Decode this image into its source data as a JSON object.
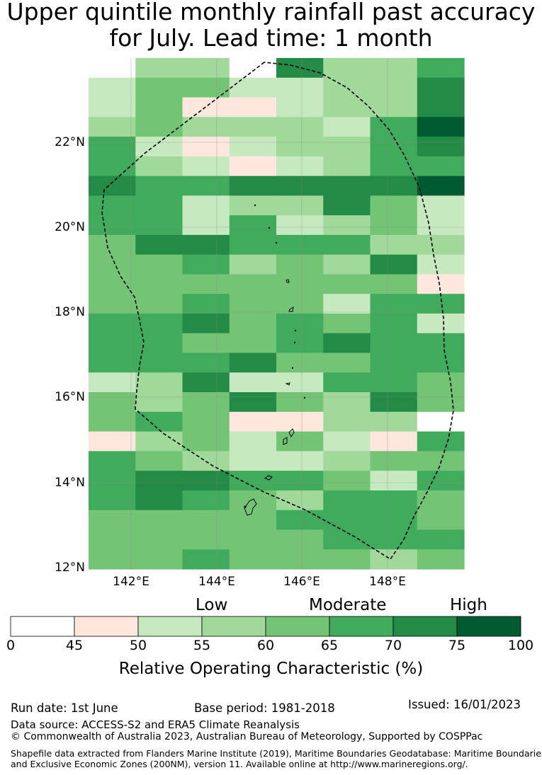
{
  "title": {
    "line1": "Upper quintile monthly rainfall past accuracy",
    "line2": "for July. Lead time: 1 month"
  },
  "map": {
    "lat_labels": [
      "22°N",
      "20°N",
      "18°N",
      "16°N",
      "14°N",
      "12°N"
    ],
    "lon_labels": [
      "142°E",
      "144°E",
      "146°E",
      "148°E"
    ],
    "colorbar": {
      "category_labels": [
        "Low",
        "Moderate",
        "High"
      ],
      "ticks": [
        "0",
        "45",
        "50",
        "55",
        "60",
        "65",
        "70",
        "75",
        "100"
      ],
      "colors": [
        "#ffffff",
        "#fee8de",
        "#c7e9c0",
        "#a1d99b",
        "#74c476",
        "#41ab5d",
        "#238b45",
        "#005a32"
      ],
      "title": "Relative Operating Characteristic (%)"
    },
    "grid_rows": [
      "03306335",
      "24422336",
      "24112336",
      "34333257",
      "52123356",
      "53212355",
      "65566667",
      "55233642",
      "55252342",
      "46655533",
      "44534362",
      "44444441",
      "44544255",
      "55645452",
      "55445655",
      "55564455",
      "23622554",
      "43464364",
      "45411330",
      "13424215",
      "54322344",
      "56655425",
      "56543554",
      "44445554",
      "44444555",
      "44544434"
    ]
  },
  "footer": {
    "run_date": "Run date: 1st June",
    "base_period": "Base period: 1981-2018",
    "issued": "Issued: 16/01/2023",
    "data_source": "Data source: ACCESS-S2 and ERA5 Climate Reanalysis",
    "copyright": "© Commonwealth of Australia 2023, Australian Bureau of Meteorology, Supported by COSPPac",
    "shapefile_line1": "Shapefile data extracted from Flanders Marine Institute (2019), Maritime Boundaries Geodatabase: Maritime Boundaries",
    "shapefile_line2": "and Exclusive Economic Zones (200NM), version 11. Available online at http://www.marineregions.org/."
  }
}
